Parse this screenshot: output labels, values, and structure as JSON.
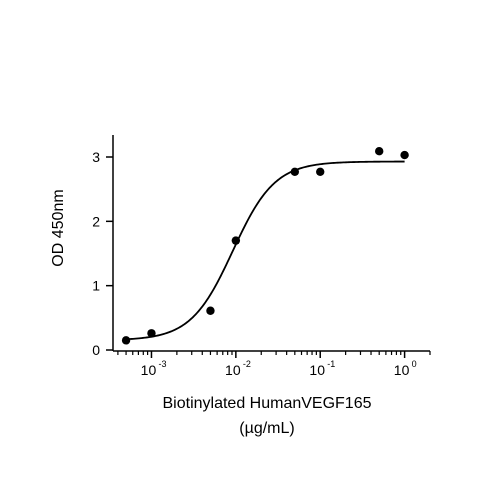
{
  "chart_data": {
    "type": "scatter",
    "xlabel": "Biotinylated HumanVEGF165",
    "xlabel_units": "(µg/mL)",
    "ylabel": "OD 450nm",
    "x_scale": "log",
    "xlim": [
      0.00035,
      2.0
    ],
    "ylim": [
      0,
      3.3
    ],
    "x_ticks": [
      {
        "value": 0.001,
        "base": "10",
        "exp": "-3"
      },
      {
        "value": 0.01,
        "base": "10",
        "exp": "-2"
      },
      {
        "value": 0.1,
        "base": "10",
        "exp": "-1"
      },
      {
        "value": 1,
        "base": "10",
        "exp": "0"
      }
    ],
    "y_ticks": [
      {
        "value": 0,
        "label": "0"
      },
      {
        "value": 1,
        "label": "1"
      },
      {
        "value": 2,
        "label": "2"
      },
      {
        "value": 3,
        "label": "3"
      }
    ],
    "grid": false,
    "legend": "none",
    "series": [
      {
        "marker": "circle",
        "x": [
          0.0005,
          0.001,
          0.005,
          0.01,
          0.05,
          0.1,
          0.5,
          1.0
        ],
        "y": [
          0.15,
          0.26,
          0.61,
          1.7,
          2.77,
          2.77,
          3.09,
          3.03
        ]
      }
    ],
    "fit": {
      "type": "4PL",
      "bottom": 0.15,
      "top": 2.93,
      "ec50": 0.0092,
      "hill": 1.75
    },
    "colors": {
      "axis": "#000000",
      "marker": "#000000",
      "curve": "#000000"
    }
  }
}
